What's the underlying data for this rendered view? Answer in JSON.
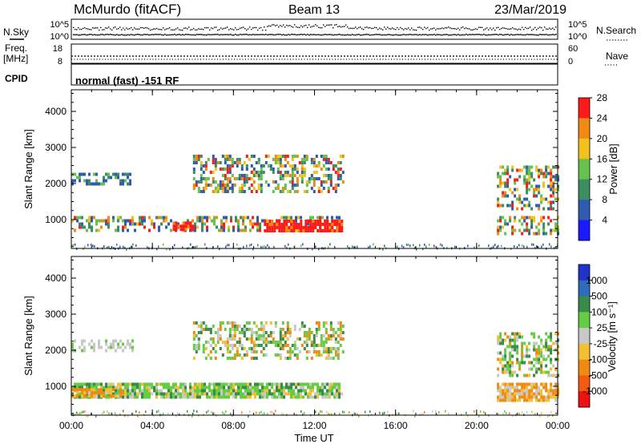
{
  "header": {
    "station": "McMurdo (fitACF)",
    "beam": "Beam 13",
    "date": "23/Mar/2019"
  },
  "top_panels": {
    "nsky_label": "N.Sky",
    "nsky_ticks": [
      "10^5",
      "10^0"
    ],
    "nsearch_label": "N.Search",
    "nsearch_ticks": [
      "10^5",
      "10^0"
    ],
    "freq_label": "Freq.",
    "freq_unit": "[MHz]",
    "freq_ticks": [
      "18",
      "8"
    ],
    "nave_label": "Nave",
    "nave_ticks": [
      "60",
      "0"
    ],
    "cpid_label": "CPID",
    "cpid_text": "normal (fast) -151 RF"
  },
  "chart_data": [
    {
      "type": "heatmap",
      "name": "power",
      "ylabel": "Slant Range [km]",
      "ylim": [
        200,
        4600
      ],
      "yticks": [
        1000,
        2000,
        3000,
        4000
      ],
      "xlim": [
        0,
        24
      ],
      "xticks": [
        "00:00",
        "04:00",
        "08:00",
        "12:00",
        "16:00",
        "20:00",
        "00:00"
      ],
      "colorbar": {
        "label": "Power [dB]",
        "ticks": [
          "4",
          "8",
          "12",
          "16",
          "20",
          "24",
          "28"
        ],
        "colors": [
          "#1a1aff",
          "#2f5bb0",
          "#3d8f63",
          "#66c24d",
          "#f2c21a",
          "#f08a12",
          "#ff1a1a"
        ]
      },
      "echo_regions": [
        {
          "x": [
            0,
            13.4
          ],
          "y": [
            700,
            1100
          ],
          "level": "mixed"
        },
        {
          "x": [
            9.5,
            13.4
          ],
          "y": [
            650,
            1000
          ],
          "level": "high"
        },
        {
          "x": [
            5.0,
            6.0
          ],
          "y": [
            700,
            950
          ],
          "level": "high"
        },
        {
          "x": [
            0,
            3.0
          ],
          "y": [
            1950,
            2300
          ],
          "level": "low"
        },
        {
          "x": [
            6.0,
            13.4
          ],
          "y": [
            1800,
            2800
          ],
          "level": "mixed"
        },
        {
          "x": [
            21.0,
            24
          ],
          "y": [
            650,
            1100
          ],
          "level": "mixed"
        },
        {
          "x": [
            21.0,
            24
          ],
          "y": [
            1300,
            2500
          ],
          "level": "mixed"
        }
      ]
    },
    {
      "type": "heatmap",
      "name": "velocity",
      "ylabel": "Slant Range [km]",
      "xlabel": "Time UT",
      "ylim": [
        200,
        4600
      ],
      "yticks": [
        1000,
        2000,
        3000,
        4000
      ],
      "xlim": [
        0,
        24
      ],
      "xticks": [
        "00:00",
        "04:00",
        "08:00",
        "12:00",
        "16:00",
        "20:00",
        "00:00"
      ],
      "colorbar": {
        "label": "Velocity [m s⁻¹]",
        "ticks": [
          "1000",
          "500",
          "100",
          "25",
          "-25",
          "-100",
          "-500",
          "-1000"
        ],
        "colors": [
          "#2233cc",
          "#2e6bb8",
          "#3a8a4a",
          "#66cc44",
          "#c8c8c8",
          "#f2c030",
          "#f08a12",
          "#f25a10",
          "#ee1111"
        ]
      },
      "echo_regions": [
        {
          "x": [
            0,
            13.4
          ],
          "y": [
            700,
            1100
          ],
          "level": "positive"
        },
        {
          "x": [
            0,
            2.5
          ],
          "y": [
            700,
            950
          ],
          "level": "negative"
        },
        {
          "x": [
            0,
            3.0
          ],
          "y": [
            1950,
            2300
          ],
          "level": "near-zero"
        },
        {
          "x": [
            6.0,
            13.4
          ],
          "y": [
            1800,
            2800
          ],
          "level": "mixed"
        },
        {
          "x": [
            21.0,
            24
          ],
          "y": [
            650,
            1100
          ],
          "level": "negative"
        },
        {
          "x": [
            21.0,
            24
          ],
          "y": [
            1300,
            2500
          ],
          "level": "mixed"
        }
      ]
    }
  ]
}
